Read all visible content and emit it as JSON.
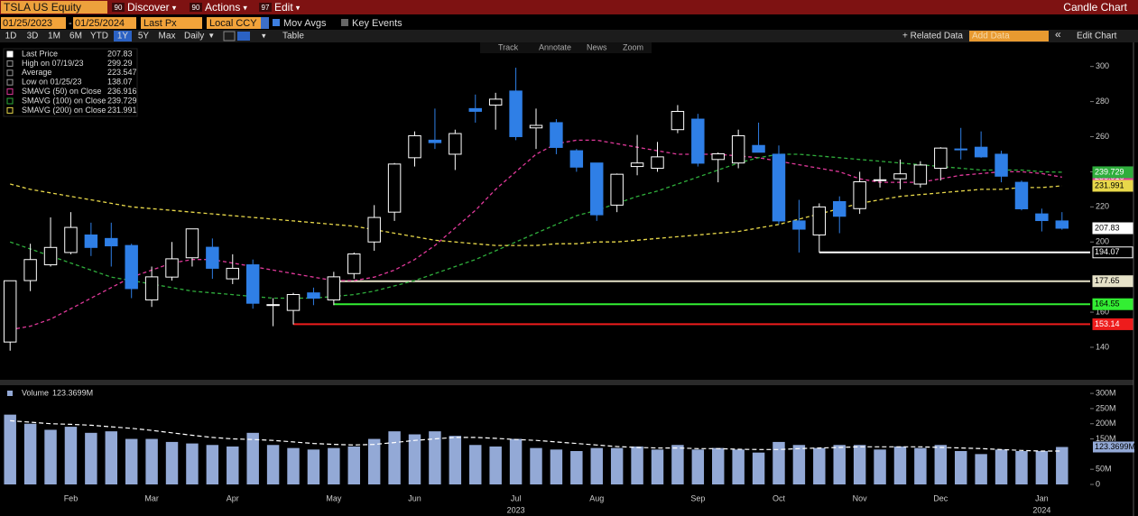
{
  "ui": {
    "security": "TSLA US Equity",
    "menus": [
      {
        "code": "90",
        "label": "Discover"
      },
      {
        "code": "90",
        "label": "Actions"
      },
      {
        "code": "97",
        "label": "Edit"
      }
    ],
    "view_title": "Candle Chart",
    "start_date": "01/25/2023",
    "end_date": "01/25/2024",
    "field": "Last Px",
    "currency": "Local CCY",
    "toggles": [
      "Mov Avgs",
      "Key Events"
    ],
    "periods": [
      "1D",
      "3D",
      "1M",
      "6M",
      "YTD",
      "1Y",
      "5Y",
      "Max"
    ],
    "frequency": "Daily",
    "table": "Table",
    "related": "+ Related Data",
    "add_data": "Add Data",
    "edit_chart": "Edit Chart",
    "tools": [
      "Track",
      "Annotate",
      "News",
      "Zoom"
    ]
  },
  "chart_data": {
    "type": "candlestick",
    "categories": [
      null,
      null,
      null,
      "Feb",
      null,
      null,
      null,
      "Mar",
      null,
      null,
      null,
      "Apr",
      null,
      null,
      null,
      null,
      "May",
      null,
      null,
      null,
      "Jun",
      null,
      null,
      null,
      null,
      "Jul",
      null,
      null,
      null,
      "Aug",
      null,
      null,
      null,
      null,
      "Sep",
      null,
      null,
      null,
      "Oct",
      null,
      null,
      null,
      "Nov",
      null,
      null,
      null,
      "Dec",
      null,
      null,
      null,
      null,
      "Jan",
      null
    ],
    "years": [
      null,
      null,
      null,
      null,
      null,
      null,
      null,
      null,
      null,
      null,
      null,
      null,
      null,
      null,
      null,
      null,
      null,
      null,
      null,
      null,
      null,
      null,
      null,
      null,
      null,
      "2023",
      null,
      null,
      null,
      null,
      null,
      null,
      null,
      null,
      null,
      null,
      null,
      null,
      null,
      null,
      null,
      null,
      null,
      null,
      null,
      null,
      null,
      null,
      null,
      null,
      null,
      "2024",
      null
    ],
    "open": [
      143,
      178,
      187,
      194,
      204,
      202,
      198,
      167,
      180,
      191,
      197,
      179,
      187,
      164,
      161,
      171,
      167,
      182,
      200,
      217,
      248,
      258,
      250,
      276,
      278,
      286,
      265,
      268,
      252,
      245,
      221,
      243,
      242,
      264,
      270,
      247,
      245,
      255,
      250,
      212,
      204,
      223,
      219,
      235,
      236,
      233,
      242,
      253,
      254,
      250,
      234,
      216,
      212
    ],
    "high": [
      178,
      199,
      214,
      217,
      211,
      211,
      199,
      186,
      200,
      207,
      202,
      193,
      190,
      168,
      171,
      174,
      183,
      194,
      221,
      245,
      263,
      276,
      264,
      284,
      285,
      299.29,
      276,
      270,
      253,
      245,
      239,
      261,
      257,
      278,
      273,
      251,
      264,
      268,
      255,
      224,
      222,
      226,
      240,
      243,
      247,
      246,
      254,
      265,
      263,
      252,
      235,
      219,
      217
    ],
    "low": [
      138.07,
      172,
      186,
      193,
      192,
      186,
      168,
      163,
      178,
      186,
      179,
      176,
      162,
      152,
      153,
      164,
      164,
      179,
      195,
      212,
      243,
      253,
      241,
      268,
      264,
      258,
      253,
      250,
      240,
      212,
      217,
      238,
      240,
      262,
      243,
      234,
      242,
      251,
      210,
      194,
      194,
      205,
      216,
      231,
      230,
      231,
      235,
      247,
      248,
      234,
      218,
      206,
      207
    ],
    "close": [
      177.9,
      189.98,
      196.89,
      208.31,
      196.88,
      197.79,
      173.44,
      180.13,
      190.41,
      207.46,
      185,
      185,
      165.08,
      164.31,
      170.06,
      167.98,
      180.14,
      193.17,
      213.97,
      244.4,
      260.54,
      256.6,
      261.77,
      274.43,
      281.38,
      260.02,
      266.44,
      253.86,
      242.65,
      215.49,
      238.59,
      245.01,
      248.5,
      274.39,
      244.88,
      250.22,
      260.53,
      251.12,
      211.99,
      207.3,
      219.96,
      214.65,
      234.3,
      235.45,
      238.83,
      243.84,
      253.5,
      252.54,
      248.48,
      237.49,
      218.89,
      212.19,
      207.83
    ],
    "up_color": "#ffffff",
    "down_color": "#2f7fe6",
    "series": [
      {
        "name": "SMAVG (50)  on Close",
        "color": "#e0399a",
        "values": [
          150,
          152,
          156,
          162,
          168,
          174,
          180,
          184,
          188,
          190,
          190,
          188,
          186,
          184,
          182,
          180,
          178,
          178,
          180,
          184,
          190,
          198,
          208,
          218,
          230,
          240,
          250,
          256,
          258,
          258,
          256,
          254,
          252,
          250,
          250,
          250,
          249,
          248,
          246,
          244,
          242,
          240,
          236,
          234,
          234,
          234,
          236,
          238,
          239,
          240,
          240,
          239,
          236.916
        ]
      },
      {
        "name": "SMAVG (100)  on Close",
        "color": "#2fae3c",
        "values": [
          200,
          196,
          192,
          188,
          184,
          180,
          178,
          176,
          174,
          172,
          171,
          170,
          169,
          168,
          168,
          168,
          169,
          170,
          172,
          175,
          178,
          182,
          186,
          190,
          195,
          200,
          205,
          210,
          215,
          218,
          222,
          226,
          229,
          233,
          237,
          241,
          245,
          248,
          250,
          250,
          249,
          248,
          247,
          246,
          245,
          244,
          243,
          242,
          241,
          241,
          241,
          240,
          239.729
        ]
      },
      {
        "name": "SMAVG (200)  on Close",
        "color": "#e8d84a",
        "values": [
          233,
          230,
          228,
          226,
          224,
          222,
          220,
          219,
          218,
          217,
          216,
          215,
          214,
          213,
          212,
          211,
          210,
          209,
          207,
          205,
          203,
          201,
          200,
          199,
          198,
          198,
          198,
          199,
          199,
          200,
          200,
          201,
          202,
          203,
          204,
          205,
          206,
          208,
          210,
          213,
          216,
          219,
          222,
          224,
          226,
          227,
          228,
          229,
          230,
          230,
          231,
          231,
          231.991
        ]
      }
    ],
    "legend": [
      {
        "label": "Last Price"
      },
      {
        "label": "High on 07/19/23"
      },
      {
        "label": "Average",
        "value": 223.547
      },
      {
        "label": "Low on 01/25/23"
      }
    ],
    "levels": [
      {
        "value": 194.07,
        "color": "#ffffff"
      },
      {
        "value": 177.65,
        "color": "#e6e2c8"
      },
      {
        "value": 164.55,
        "color": "#33ee33"
      },
      {
        "value": 153.14,
        "color": "#ee1c1c"
      }
    ],
    "ylim": [
      122,
      306
    ],
    "yticks": [
      140,
      160,
      200,
      220,
      240,
      260,
      280,
      300
    ],
    "volume": {
      "label": "Volume",
      "color": "#93a9d6",
      "last_label": "123.3699M",
      "values": [
        230,
        200,
        180,
        190,
        170,
        175,
        150,
        150,
        140,
        135,
        130,
        125,
        170,
        130,
        120,
        115,
        120,
        125,
        150,
        175,
        165,
        175,
        160,
        130,
        125,
        150,
        120,
        115,
        110,
        120,
        120,
        125,
        115,
        130,
        115,
        120,
        115,
        105,
        140,
        130,
        120,
        130,
        130,
        115,
        125,
        120,
        130,
        110,
        100,
        115,
        110,
        110,
        123.3699
      ],
      "sma": [
        210,
        205,
        200,
        198,
        195,
        190,
        185,
        178,
        170,
        162,
        155,
        150,
        148,
        145,
        140,
        135,
        132,
        130,
        132,
        138,
        145,
        150,
        155,
        155,
        152,
        148,
        145,
        140,
        135,
        130,
        125,
        122,
        120,
        120,
        118,
        118,
        116,
        115,
        115,
        118,
        120,
        122,
        124,
        124,
        124,
        124,
        122,
        120,
        118,
        115,
        112,
        110,
        110
      ],
      "sma_color": "#ffffff",
      "ylim": [
        0,
        330
      ],
      "yticks": [
        {
          "value": 0,
          "label": "0"
        },
        {
          "value": 50,
          "label": "50M"
        },
        {
          "value": 150,
          "label": "150M"
        },
        {
          "value": 200,
          "label": "200M"
        },
        {
          "value": 250,
          "label": "250M"
        },
        {
          "value": 300,
          "label": "300M"
        }
      ]
    }
  }
}
